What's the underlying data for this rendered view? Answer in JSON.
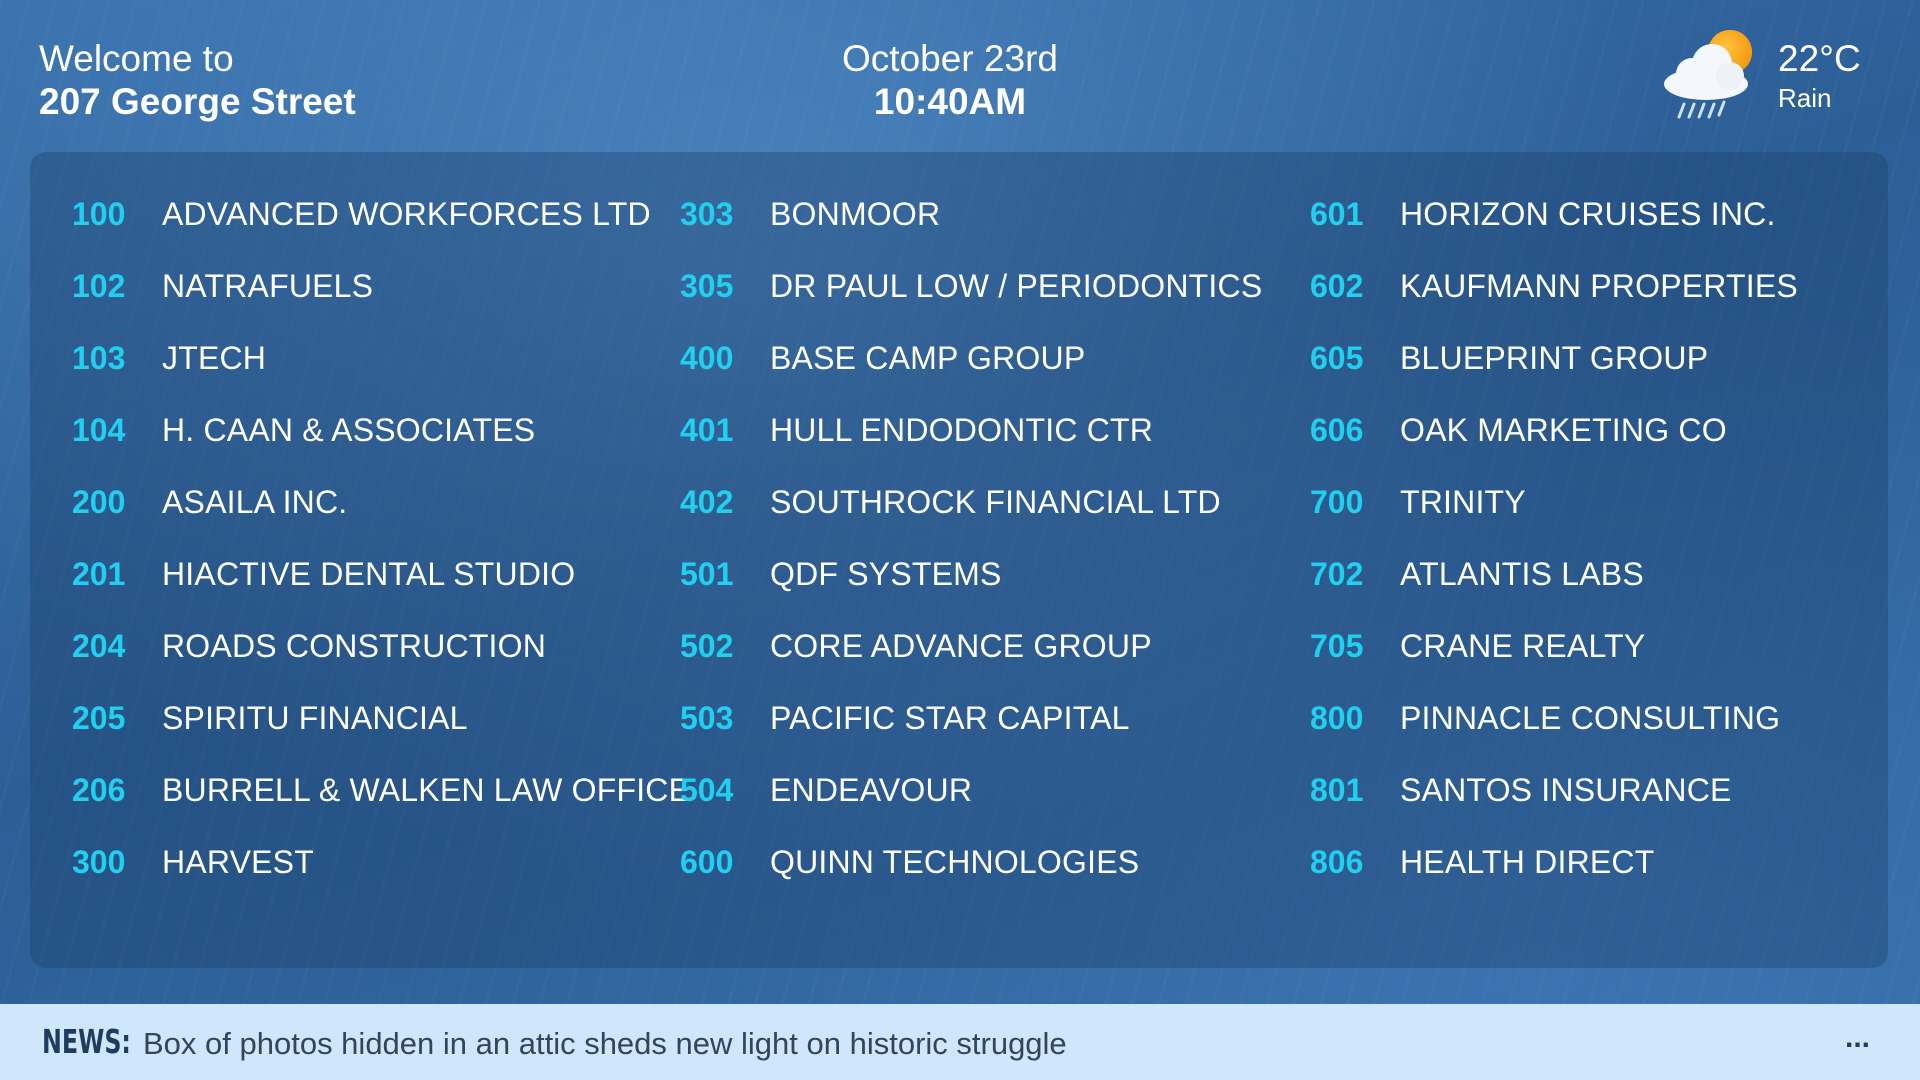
{
  "header": {
    "welcome_line1": "Welcome to",
    "welcome_line2": "207 George Street",
    "date": "October 23rd",
    "time": "10:40AM"
  },
  "weather": {
    "icon": "rain-cloud-sun-icon",
    "temperature": "22°C",
    "condition": "Rain"
  },
  "colors": {
    "background": "#2d5f97",
    "suite_number": "#1fd0f0",
    "news_bar": "#cfe6fb"
  },
  "directory": {
    "columns": [
      [
        {
          "suite": "100",
          "name": "ADVANCED WORKFORCES LTD"
        },
        {
          "suite": "102",
          "name": "NATRAFUELS"
        },
        {
          "suite": "103",
          "name": "JTECH"
        },
        {
          "suite": "104",
          "name": "H. CAAN & ASSOCIATES"
        },
        {
          "suite": "200",
          "name": "ASAILA INC."
        },
        {
          "suite": "201",
          "name": "HIACTIVE DENTAL STUDIO"
        },
        {
          "suite": "204",
          "name": "ROADS CONSTRUCTION"
        },
        {
          "suite": "205",
          "name": "SPIRITU FINANCIAL"
        },
        {
          "suite": "206",
          "name": "BURRELL & WALKEN LAW OFFICE"
        },
        {
          "suite": "300",
          "name": "HARVEST"
        }
      ],
      [
        {
          "suite": "303",
          "name": "BONMOOR"
        },
        {
          "suite": "305",
          "name": "DR PAUL LOW / PERIODONTICS"
        },
        {
          "suite": "400",
          "name": "BASE CAMP GROUP"
        },
        {
          "suite": "401",
          "name": "HULL ENDODONTIC CTR"
        },
        {
          "suite": "402",
          "name": "SOUTHROCK FINANCIAL LTD"
        },
        {
          "suite": "501",
          "name": "QDF SYSTEMS"
        },
        {
          "suite": "502",
          "name": "CORE ADVANCE GROUP"
        },
        {
          "suite": "503",
          "name": "PACIFIC STAR CAPITAL"
        },
        {
          "suite": "504",
          "name": "ENDEAVOUR"
        },
        {
          "suite": "600",
          "name": "QUINN TECHNOLOGIES"
        }
      ],
      [
        {
          "suite": "601",
          "name": "HORIZON CRUISES INC."
        },
        {
          "suite": "602",
          "name": "KAUFMANN PROPERTIES"
        },
        {
          "suite": "605",
          "name": "BLUEPRINT GROUP"
        },
        {
          "suite": "606",
          "name": "OAK MARKETING CO"
        },
        {
          "suite": "700",
          "name": "TRINITY"
        },
        {
          "suite": "702",
          "name": "ATLANTIS LABS"
        },
        {
          "suite": "705",
          "name": "CRANE REALTY"
        },
        {
          "suite": "800",
          "name": "PINNACLE CONSULTING"
        },
        {
          "suite": "801",
          "name": "SANTOS INSURANCE"
        },
        {
          "suite": "806",
          "name": "HEALTH DIRECT"
        }
      ]
    ]
  },
  "news": {
    "label": "NEWS:",
    "headline": "Box of photos hidden in an attic sheds new light on historic struggle",
    "more": "..."
  }
}
